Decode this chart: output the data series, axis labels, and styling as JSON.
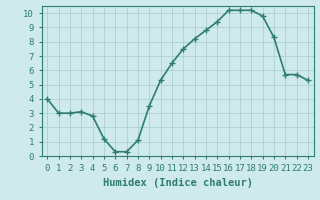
{
  "x": [
    0,
    1,
    2,
    3,
    4,
    5,
    6,
    7,
    8,
    9,
    10,
    11,
    12,
    13,
    14,
    15,
    16,
    17,
    18,
    19,
    20,
    21,
    22,
    23
  ],
  "y": [
    4.0,
    3.0,
    3.0,
    3.1,
    2.8,
    1.2,
    0.3,
    0.3,
    1.1,
    3.5,
    5.3,
    6.5,
    7.5,
    8.2,
    8.8,
    9.4,
    10.2,
    10.2,
    10.2,
    9.8,
    8.3,
    5.7,
    5.7,
    5.3
  ],
  "line_color": "#2e7d6e",
  "marker": "+",
  "markersize": 4,
  "linewidth": 1.2,
  "bg_color": "#ceeaea",
  "grid_color": "#b0d0d0",
  "xlabel": "Humidex (Indice chaleur)",
  "xlabel_fontsize": 7.5,
  "tick_fontsize": 6.5,
  "xlim": [
    -0.5,
    23.5
  ],
  "ylim": [
    0,
    10.5
  ],
  "yticks": [
    0,
    1,
    2,
    3,
    4,
    5,
    6,
    7,
    8,
    9,
    10
  ],
  "xticks": [
    0,
    1,
    2,
    3,
    4,
    5,
    6,
    7,
    8,
    9,
    10,
    11,
    12,
    13,
    14,
    15,
    16,
    17,
    18,
    19,
    20,
    21,
    22,
    23
  ]
}
